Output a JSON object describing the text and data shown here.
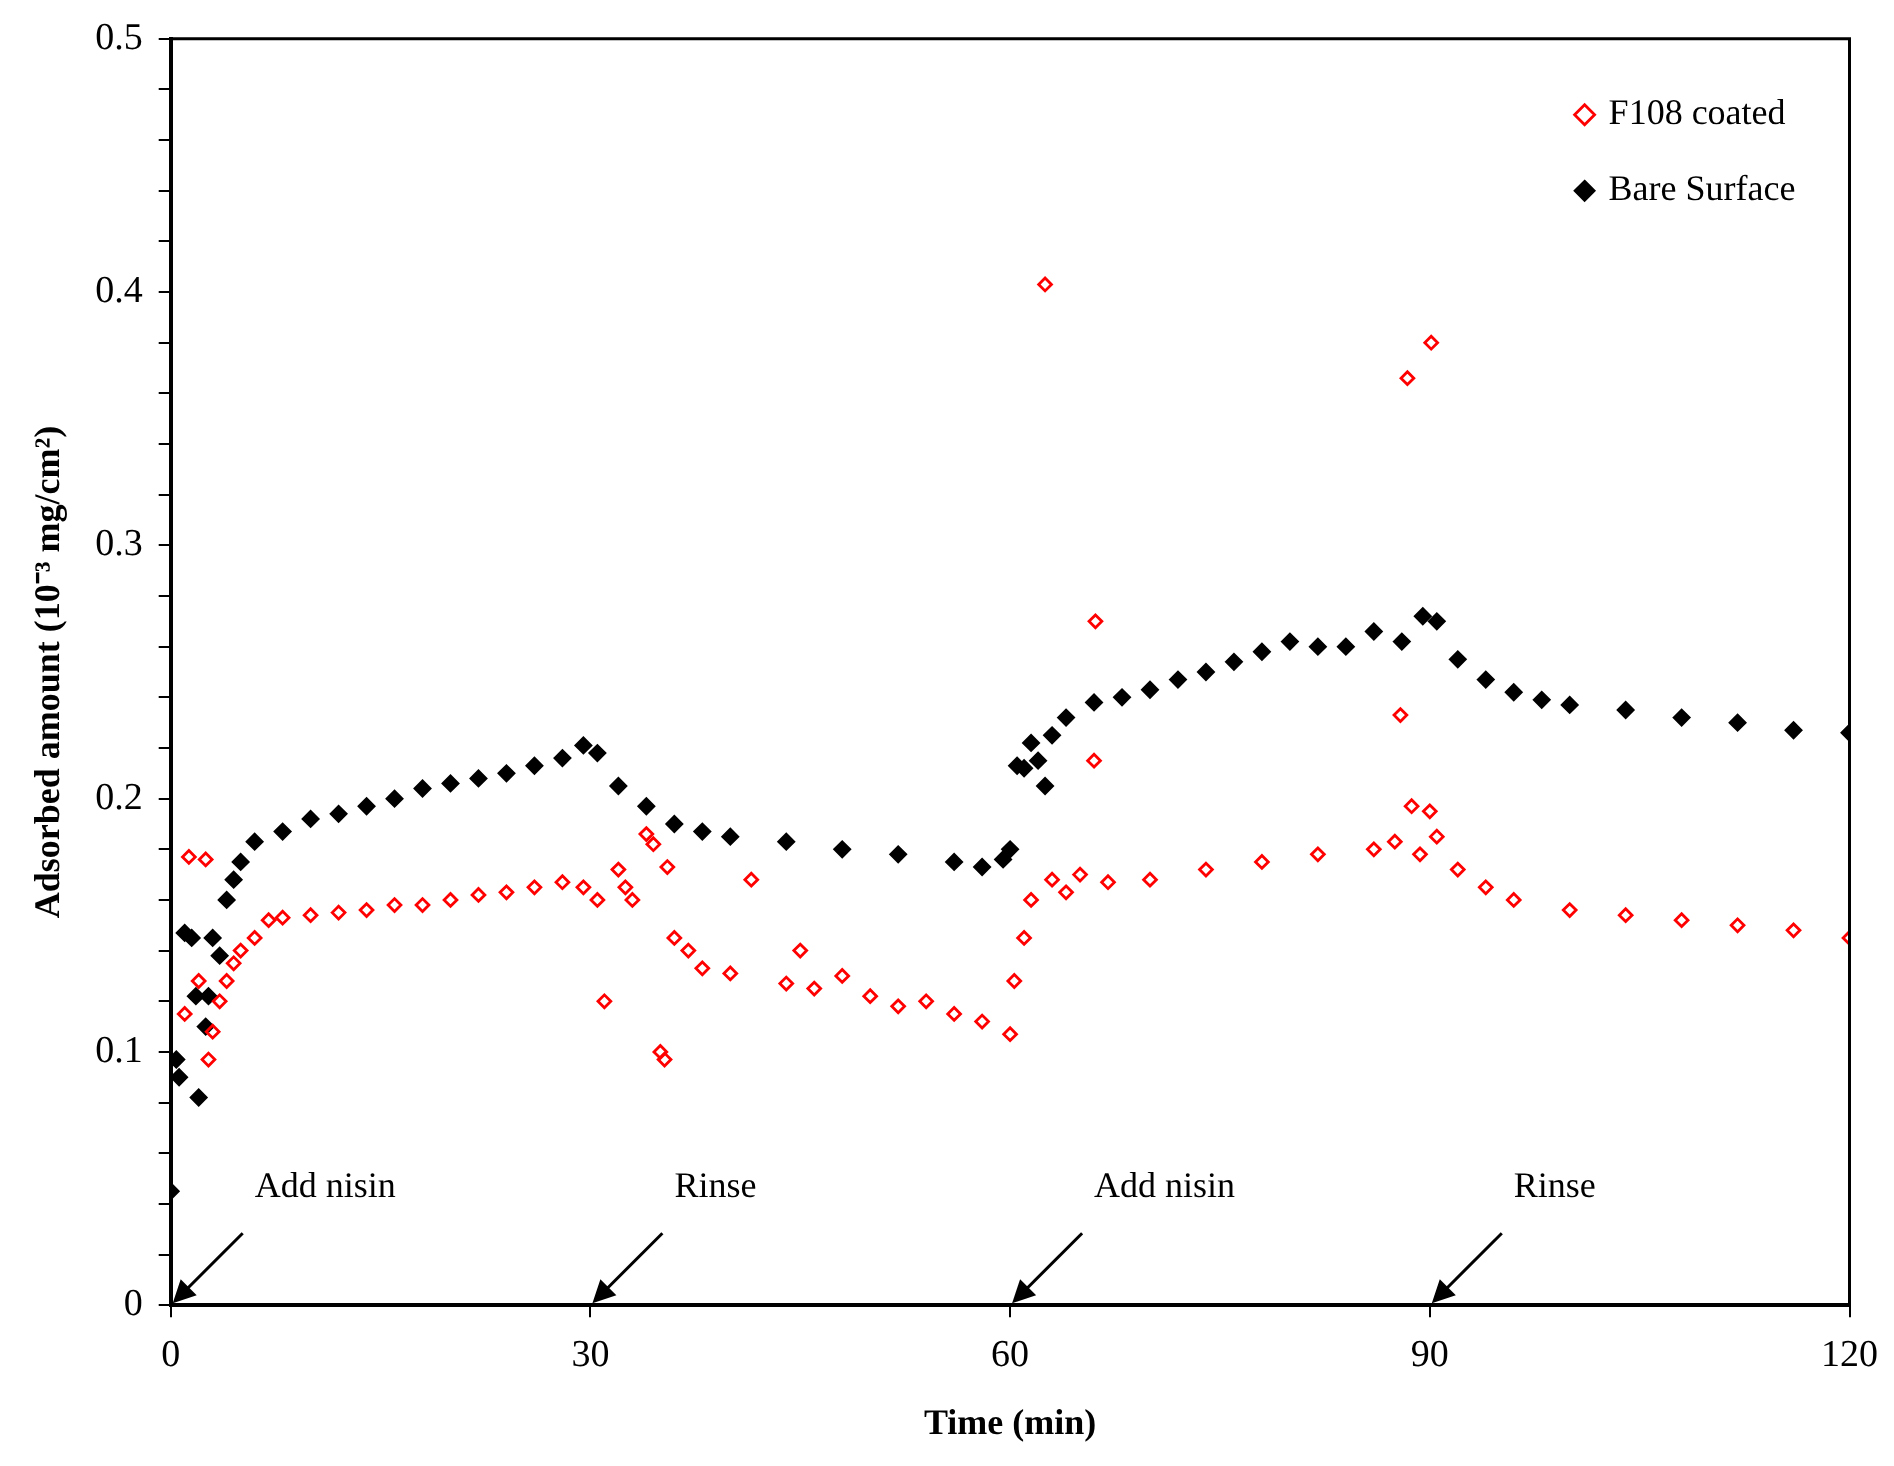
{
  "chart_data": {
    "type": "scatter",
    "xlabel": "Time (min)",
    "ylabel": "Adsorbed amount (10⁻³ mg/cm²)",
    "xlim": [
      0,
      120
    ],
    "xticks": [
      0,
      30,
      60,
      90,
      120
    ],
    "ylim": [
      0,
      0.5
    ],
    "yticks": [
      0,
      {
        "value": 0.02,
        "label": null
      },
      {
        "value": 0.04,
        "label": null
      },
      {
        "value": 0.06,
        "label": null
      },
      {
        "value": 0.08,
        "label": null
      },
      0.1,
      {
        "value": 0.12,
        "label": null
      },
      {
        "value": 0.14,
        "label": null
      },
      {
        "value": 0.16,
        "label": null
      },
      {
        "value": 0.18,
        "label": null
      },
      0.2,
      {
        "value": 0.22,
        "label": null
      },
      {
        "value": 0.24,
        "label": null
      },
      {
        "value": 0.26,
        "label": null
      },
      {
        "value": 0.28,
        "label": null
      },
      0.3,
      {
        "value": 0.32,
        "label": null
      },
      {
        "value": 0.34,
        "label": null
      },
      {
        "value": 0.36,
        "label": null
      },
      {
        "value": 0.38,
        "label": null
      },
      0.4,
      {
        "value": 0.42,
        "label": null
      },
      {
        "value": 0.44,
        "label": null
      },
      {
        "value": 0.46,
        "label": null
      },
      {
        "value": 0.48,
        "label": null
      },
      0.5
    ],
    "grid": false,
    "legend": "top right",
    "marker": "diamond",
    "series": [
      {
        "name": "F108 coated",
        "color": "#ff0000",
        "x": [
          1,
          1.3,
          2,
          2.5,
          2.7,
          3,
          3.5,
          4,
          4.5,
          5,
          6,
          7,
          8,
          10,
          12,
          14,
          16,
          18,
          20,
          22,
          24,
          26,
          28,
          29.5,
          30.5,
          31,
          32,
          32.5,
          33,
          34,
          34.5,
          35,
          35.3,
          35.5,
          36,
          37,
          38,
          40,
          41.5,
          44,
          45,
          46,
          48,
          50,
          52,
          54,
          56,
          58,
          60,
          60.3,
          61,
          61.5,
          62.5,
          63,
          64,
          65,
          66,
          66.1,
          67,
          70,
          74,
          78,
          82,
          86,
          87.5,
          87.9,
          88.4,
          88.7,
          89.3,
          90,
          90.1,
          90.5,
          92,
          94,
          96,
          100,
          104,
          108,
          112,
          116,
          120
        ],
        "values": [
          0.115,
          0.177,
          0.128,
          0.176,
          0.097,
          0.108,
          0.12,
          0.128,
          0.135,
          0.14,
          0.145,
          0.152,
          0.153,
          0.154,
          0.155,
          0.156,
          0.158,
          0.158,
          0.16,
          0.162,
          0.163,
          0.165,
          0.167,
          0.165,
          0.16,
          0.12,
          0.172,
          0.165,
          0.16,
          0.186,
          0.182,
          0.1,
          0.097,
          0.173,
          0.145,
          0.14,
          0.133,
          0.131,
          0.168,
          0.127,
          0.14,
          0.125,
          0.13,
          0.122,
          0.118,
          0.12,
          0.115,
          0.112,
          0.107,
          0.128,
          0.145,
          0.16,
          0.403,
          0.168,
          0.163,
          0.17,
          0.215,
          0.27,
          0.167,
          0.168,
          0.172,
          0.175,
          0.178,
          0.18,
          0.183,
          0.233,
          0.366,
          0.197,
          0.178,
          0.195,
          0.38,
          0.185,
          0.172,
          0.165,
          0.16,
          0.156,
          0.154,
          0.152,
          0.15,
          0.148,
          0.145
        ]
      },
      {
        "name": "Bare Surface",
        "color": "#000000",
        "x": [
          0,
          0.4,
          0.6,
          1,
          1.5,
          1.8,
          2,
          2.5,
          2.7,
          3,
          3.5,
          4,
          4.5,
          5,
          6,
          8,
          10,
          12,
          14,
          16,
          18,
          20,
          22,
          24,
          26,
          28,
          29.5,
          30.5,
          32,
          34,
          36,
          38,
          40,
          44,
          48,
          52,
          56,
          58,
          59.5,
          60,
          60.5,
          61,
          61.5,
          62,
          62.5,
          63,
          64,
          66,
          68,
          70,
          72,
          74,
          76,
          78,
          80,
          82,
          84,
          86,
          88,
          89.5,
          90.5,
          92,
          94,
          96,
          98,
          100,
          104,
          108,
          112,
          116,
          120
        ],
        "values": [
          0.045,
          0.097,
          0.09,
          0.147,
          0.145,
          0.122,
          0.082,
          0.11,
          0.122,
          0.145,
          0.138,
          0.16,
          0.168,
          0.175,
          0.183,
          0.187,
          0.192,
          0.194,
          0.197,
          0.2,
          0.204,
          0.206,
          0.208,
          0.21,
          0.213,
          0.216,
          0.221,
          0.218,
          0.205,
          0.197,
          0.19,
          0.187,
          0.185,
          0.183,
          0.18,
          0.178,
          0.175,
          0.173,
          0.176,
          0.18,
          0.213,
          0.212,
          0.222,
          0.215,
          0.205,
          0.225,
          0.232,
          0.238,
          0.24,
          0.243,
          0.247,
          0.25,
          0.254,
          0.258,
          0.262,
          0.26,
          0.26,
          0.266,
          0.262,
          0.272,
          0.27,
          0.255,
          0.247,
          0.242,
          0.239,
          0.237,
          0.235,
          0.232,
          0.23,
          0.227,
          0.226
        ]
      }
    ],
    "annotations": [
      "Add nisin",
      "Rinse",
      "Add nisin",
      "Rinse"
    ]
  }
}
